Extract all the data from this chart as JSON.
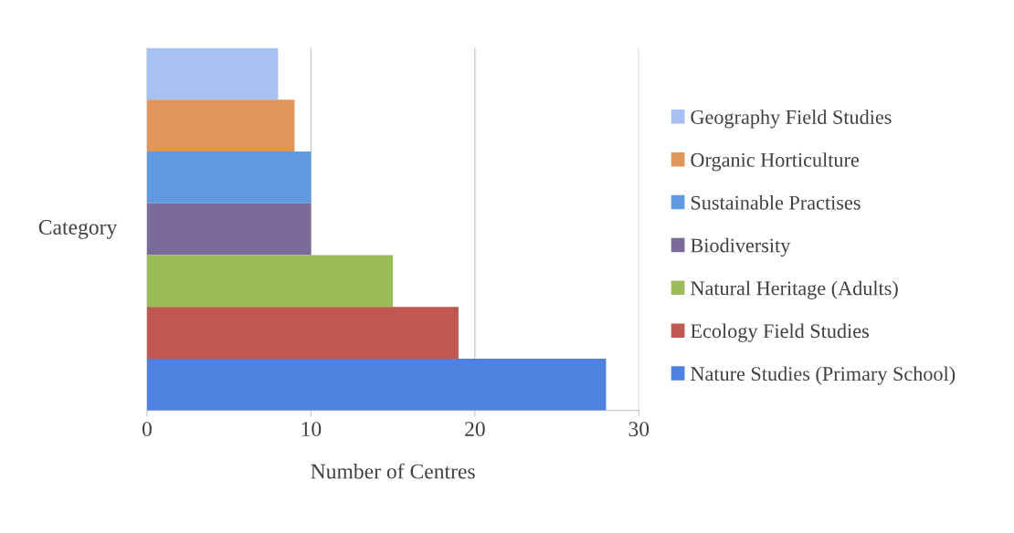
{
  "chart_data": {
    "type": "bar",
    "orientation": "horizontal",
    "categories": [
      null,
      null,
      null,
      null,
      null,
      null,
      null
    ],
    "series": [
      {
        "name": "Geography Field Studies",
        "color": "#a6c1f2",
        "values": [
          8,
          null,
          null,
          null,
          null,
          null,
          null
        ]
      },
      {
        "name": "Organic Horticulture",
        "color": "#e2955a",
        "values": [
          null,
          9,
          null,
          null,
          null,
          null,
          null
        ]
      },
      {
        "name": "Sustainable Practises",
        "color": "#5f9ae0",
        "values": [
          null,
          null,
          10,
          null,
          null,
          null,
          null
        ]
      },
      {
        "name": "Biodiversity",
        "color": "#7b6b99",
        "values": [
          null,
          null,
          null,
          10,
          null,
          null,
          null
        ]
      },
      {
        "name": "Natural Heritage (Adults)",
        "color": "#9bbd59",
        "values": [
          null,
          null,
          null,
          null,
          15,
          null,
          null
        ]
      },
      {
        "name": "Ecology Field Studies",
        "color": "#c0584f",
        "values": [
          null,
          null,
          null,
          null,
          null,
          19,
          null
        ]
      },
      {
        "name": "Nature Studies (Primary School)",
        "color": "#4f82e0",
        "values": [
          null,
          null,
          null,
          null,
          null,
          null,
          28
        ]
      }
    ],
    "xlabel": "Number of Centres",
    "ylabel": "Category",
    "xlim": [
      0,
      30
    ],
    "xticks": [
      0,
      10,
      20,
      30
    ],
    "grid": "x",
    "legend": "right"
  }
}
